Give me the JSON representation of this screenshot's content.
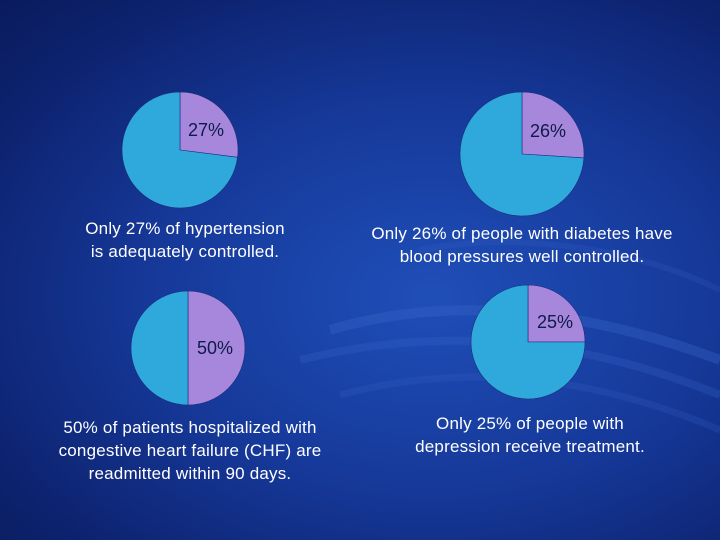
{
  "colors": {
    "slice": "#a687dc",
    "remainder": "#2fa8db",
    "label": "#0d1b4a",
    "caption": "#ffffff"
  },
  "chart_data": [
    {
      "type": "pie",
      "values": [
        27,
        73
      ],
      "slice_label": "27%",
      "caption_lines": [
        "Only 27% of hypertension",
        "is adequately controlled."
      ]
    },
    {
      "type": "pie",
      "values": [
        26,
        74
      ],
      "slice_label": "26%",
      "caption_lines": [
        "Only 26% of people with diabetes have",
        "blood pressures well controlled."
      ]
    },
    {
      "type": "pie",
      "values": [
        50,
        50
      ],
      "slice_label": "50%",
      "caption_lines": [
        "50% of patients hospitalized with",
        "congestive heart failure (CHF) are",
        "readmitted within 90 days."
      ]
    },
    {
      "type": "pie",
      "values": [
        25,
        75
      ],
      "slice_label": "25%",
      "caption_lines": [
        "Only 25% of people with",
        "depression receive treatment."
      ]
    }
  ]
}
